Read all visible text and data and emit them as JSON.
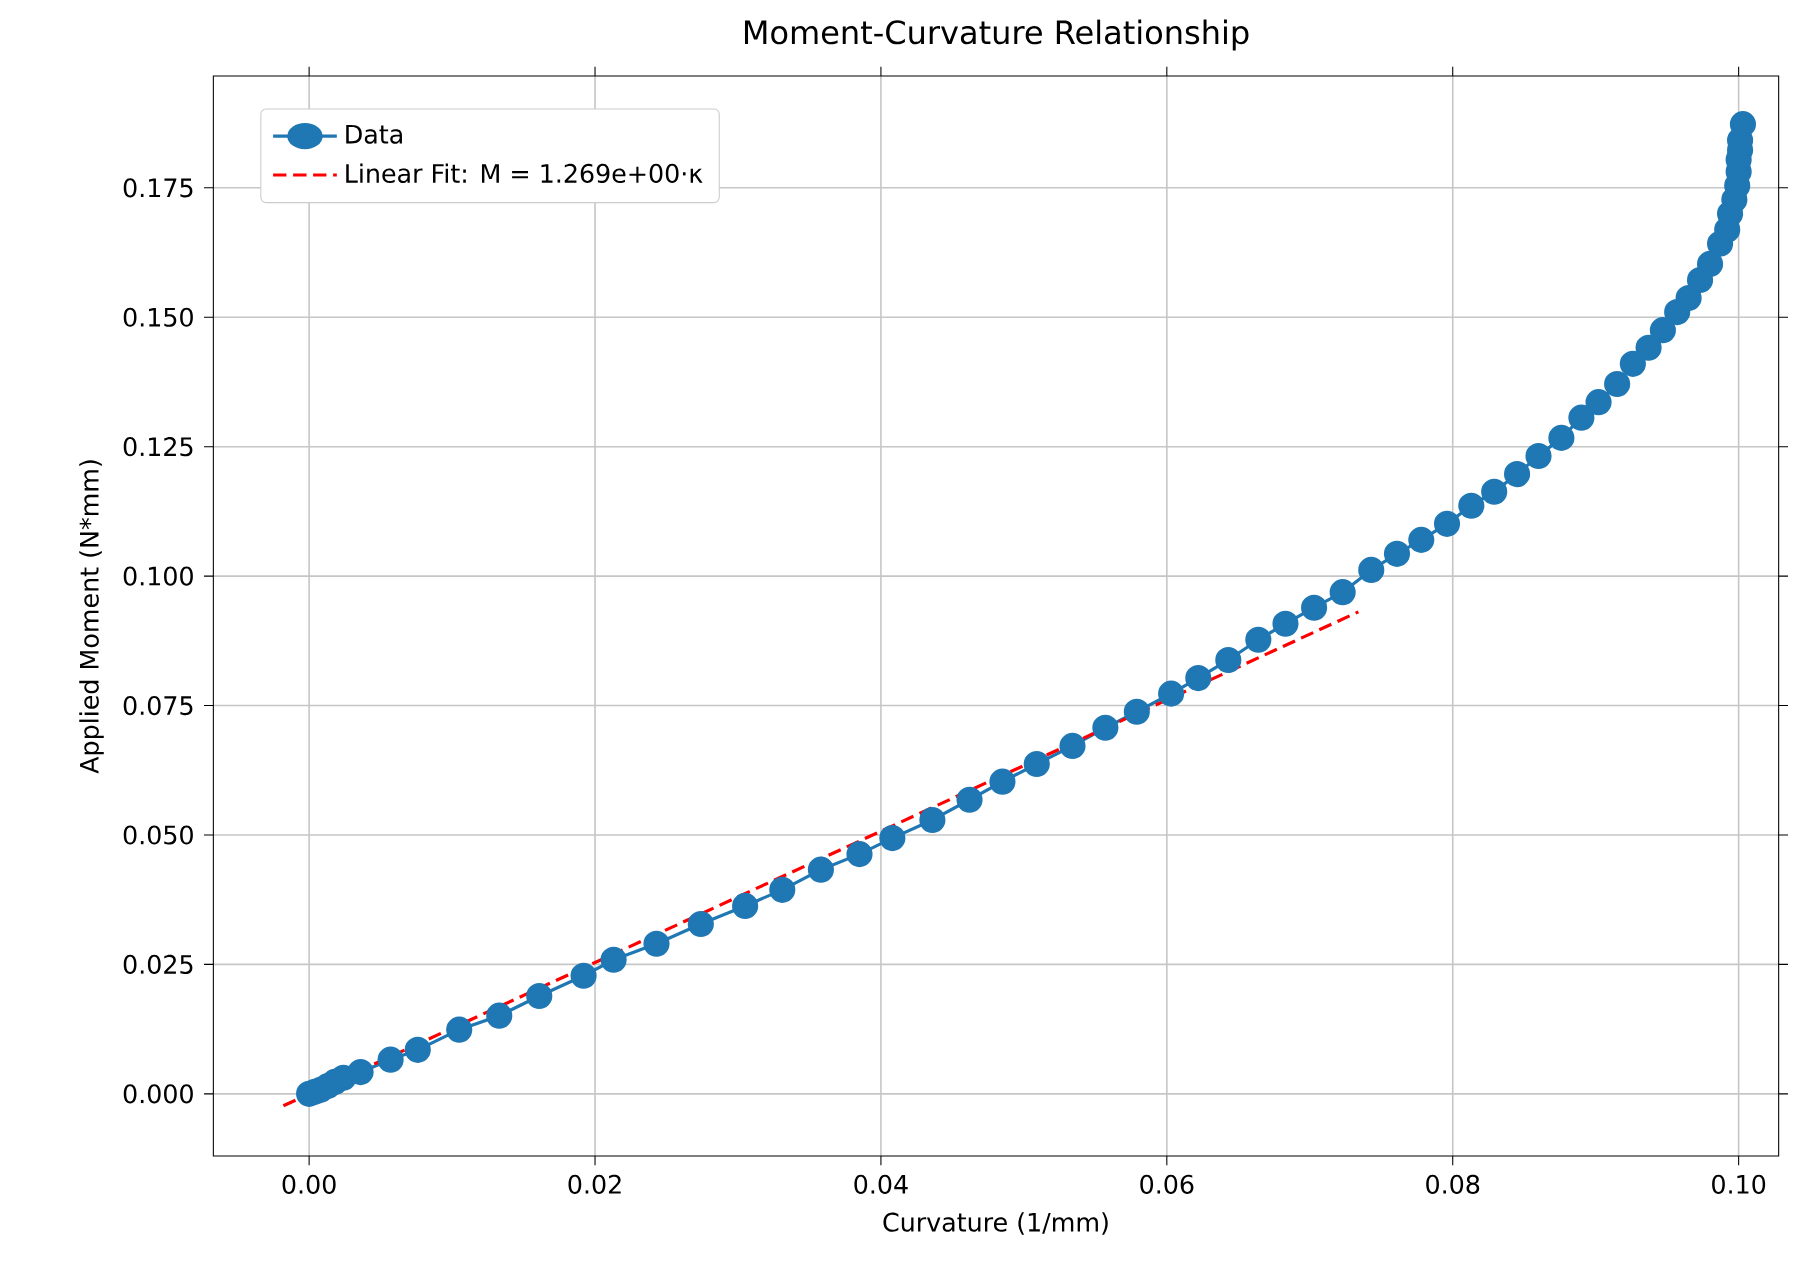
{
  "chart_data": {
    "type": "line",
    "title": "Moment-Curvature Relationship",
    "xlabel": "Curvature (1/mm)",
    "ylabel": "Applied Moment (N*mm)",
    "xlim": [
      -0.0067,
      0.1028
    ],
    "ylim": [
      -0.012,
      0.1966
    ],
    "xticks": [
      {
        "value": 0,
        "label": "0.00"
      },
      {
        "value": 0.02,
        "label": "0.02"
      },
      {
        "value": 0.04,
        "label": "0.04"
      },
      {
        "value": 0.06,
        "label": "0.06"
      },
      {
        "value": 0.08,
        "label": "0.08"
      },
      {
        "value": 0.1,
        "label": "0.10"
      }
    ],
    "yticks": [
      {
        "value": 0,
        "label": "0.000"
      },
      {
        "value": 0.025,
        "label": "0.025"
      },
      {
        "value": 0.05,
        "label": "0.050"
      },
      {
        "value": 0.075,
        "label": "0.075"
      },
      {
        "value": 0.1,
        "label": "0.100"
      },
      {
        "value": 0.125,
        "label": "0.125"
      },
      {
        "value": 0.15,
        "label": "0.150"
      },
      {
        "value": 0.175,
        "label": "0.175"
      }
    ],
    "grid": true,
    "legend": "top left",
    "series": [
      {
        "name": "Data",
        "color": "#1f77b4",
        "marker": "circle",
        "line_style": "solid",
        "x": [
          0,
          0.0004,
          0.0008,
          0.0013,
          0.0018,
          0.0024,
          0.0036,
          0.0057,
          0.0076,
          0.0105,
          0.0133,
          0.0161,
          0.0192,
          0.0213,
          0.0243,
          0.0274,
          0.0305,
          0.0331,
          0.0358,
          0.0385,
          0.0408,
          0.0436,
          0.0462,
          0.0485,
          0.0509,
          0.0534,
          0.0557,
          0.0579,
          0.0603,
          0.0622,
          0.0643,
          0.0664,
          0.0683,
          0.0703,
          0.0723,
          0.0743,
          0.0761,
          0.0778,
          0.0796,
          0.0813,
          0.0829,
          0.0845,
          0.086,
          0.0876,
          0.089,
          0.0902,
          0.0915,
          0.0926,
          0.0937,
          0.0947,
          0.0957,
          0.0965,
          0.0973,
          0.098,
          0.0987,
          0.0992,
          0.0994,
          0.0997,
          0.0999,
          0.1,
          0.1,
          0.1001,
          0.1001,
          0.1003
        ],
        "values": [
          0,
          0.0004,
          0.0008,
          0.0015,
          0.0023,
          0.0031,
          0.0042,
          0.0066,
          0.0085,
          0.0124,
          0.0151,
          0.0189,
          0.0228,
          0.0259,
          0.029,
          0.0328,
          0.0363,
          0.0394,
          0.0433,
          0.0463,
          0.0494,
          0.0529,
          0.0568,
          0.0603,
          0.0637,
          0.0672,
          0.0707,
          0.0738,
          0.0773,
          0.0803,
          0.0838,
          0.0877,
          0.0908,
          0.0939,
          0.0969,
          0.1012,
          0.1043,
          0.107,
          0.1101,
          0.1136,
          0.1163,
          0.1197,
          0.1232,
          0.1267,
          0.1306,
          0.1336,
          0.1371,
          0.141,
          0.1441,
          0.1475,
          0.151,
          0.1537,
          0.1572,
          0.1603,
          0.1642,
          0.1669,
          0.17,
          0.1727,
          0.1754,
          0.1781,
          0.1804,
          0.1823,
          0.1842,
          0.1873
        ]
      },
      {
        "name": "Linear Fit: M = 1.269e+00·κ",
        "color": "#ff0000",
        "marker": "none",
        "line_style": "dashed",
        "x": [
          -0.0018,
          0.0734
        ],
        "values": [
          -0.0023,
          0.0931
        ]
      }
    ]
  }
}
